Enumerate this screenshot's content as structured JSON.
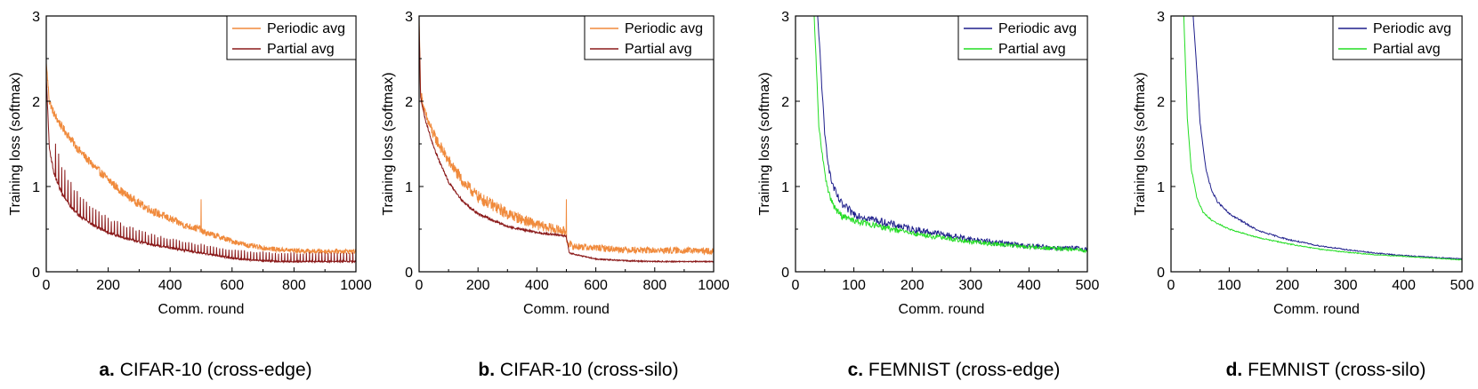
{
  "chart_data": [
    {
      "type": "line",
      "caption_letter": "a.",
      "caption_text": "CIFAR-10 (cross-edge)",
      "xlabel": "Comm. round",
      "ylabel": "Training loss (softmax)",
      "xlim": [
        0,
        1000
      ],
      "ylim": [
        0,
        3
      ],
      "xticks": [
        "0",
        "200",
        "400",
        "600",
        "800",
        "1000"
      ],
      "yticks": [
        "0",
        "1",
        "2",
        "3"
      ],
      "legend_position": "top-right",
      "series": [
        {
          "name": "Periodic avg",
          "color": "#f08a3c",
          "x": [
            0,
            10,
            25,
            50,
            75,
            100,
            150,
            200,
            250,
            300,
            350,
            400,
            450,
            499,
            500,
            501,
            550,
            600,
            650,
            700,
            750,
            800,
            850,
            900,
            950,
            1000
          ],
          "values": [
            2.45,
            2.0,
            1.85,
            1.7,
            1.58,
            1.45,
            1.25,
            1.08,
            0.92,
            0.8,
            0.7,
            0.62,
            0.54,
            0.5,
            0.85,
            0.47,
            0.42,
            0.36,
            0.31,
            0.28,
            0.26,
            0.25,
            0.24,
            0.24,
            0.24,
            0.24
          ],
          "noise": 0.05,
          "spike_every": 0,
          "spike_height": 0
        },
        {
          "name": "Partial avg",
          "color": "#8b1a1a",
          "x": [
            0,
            10,
            25,
            50,
            75,
            100,
            150,
            200,
            250,
            300,
            350,
            400,
            450,
            500,
            550,
            600,
            650,
            700,
            750,
            800,
            850,
            900,
            950,
            1000
          ],
          "values": [
            2.3,
            1.45,
            1.15,
            0.92,
            0.78,
            0.68,
            0.55,
            0.46,
            0.4,
            0.35,
            0.31,
            0.28,
            0.25,
            0.22,
            0.19,
            0.16,
            0.14,
            0.13,
            0.12,
            0.12,
            0.12,
            0.12,
            0.12,
            0.12
          ],
          "noise": 0.02,
          "spike_every": 10,
          "spike_height": 0.4
        }
      ]
    },
    {
      "type": "line",
      "caption_letter": "b.",
      "caption_text": "CIFAR-10 (cross-silo)",
      "xlabel": "Comm. round",
      "ylabel": "Training loss (softmax)",
      "xlim": [
        0,
        1000
      ],
      "ylim": [
        0,
        3
      ],
      "xticks": [
        "0",
        "200",
        "400",
        "600",
        "800",
        "1000"
      ],
      "yticks": [
        "0",
        "1",
        "2",
        "3"
      ],
      "legend_position": "top-right",
      "series": [
        {
          "name": "Periodic avg",
          "color": "#f08a3c",
          "x": [
            0,
            5,
            20,
            50,
            100,
            150,
            200,
            300,
            400,
            499,
            500,
            501,
            520,
            600,
            700,
            800,
            900,
            1000
          ],
          "values": [
            3.0,
            2.1,
            1.85,
            1.6,
            1.3,
            1.05,
            0.88,
            0.68,
            0.55,
            0.47,
            0.85,
            0.35,
            0.3,
            0.28,
            0.26,
            0.25,
            0.25,
            0.24
          ],
          "noise": 0.07,
          "spike_every": 0,
          "spike_height": 0
        },
        {
          "name": "Partial avg",
          "color": "#8b1a1a",
          "x": [
            0,
            5,
            20,
            50,
            100,
            150,
            200,
            300,
            400,
            499,
            510,
            600,
            700,
            800,
            900,
            1000
          ],
          "values": [
            2.9,
            2.05,
            1.8,
            1.45,
            1.05,
            0.82,
            0.68,
            0.53,
            0.46,
            0.42,
            0.22,
            0.15,
            0.13,
            0.12,
            0.12,
            0.12
          ],
          "noise": 0.015,
          "spike_every": 0,
          "spike_height": 0
        }
      ]
    },
    {
      "type": "line",
      "caption_letter": "c.",
      "caption_text": "FEMNIST (cross-edge)",
      "xlabel": "Comm. round",
      "ylabel": "Training loss (softmax)",
      "xlim": [
        0,
        500
      ],
      "ylim": [
        0,
        3
      ],
      "xticks": [
        "0",
        "100",
        "200",
        "300",
        "400",
        "500"
      ],
      "yticks": [
        "0",
        "1",
        "2",
        "3"
      ],
      "legend_position": "top-right",
      "series": [
        {
          "name": "Periodic avg",
          "color": "#1f1f8c",
          "x": [
            38,
            45,
            50,
            60,
            70,
            80,
            100,
            150,
            200,
            250,
            300,
            350,
            400,
            450,
            500
          ],
          "values": [
            3.0,
            2.2,
            1.6,
            1.1,
            0.9,
            0.78,
            0.68,
            0.58,
            0.5,
            0.44,
            0.38,
            0.34,
            0.3,
            0.28,
            0.27
          ],
          "noise": 0.05,
          "spike_every": 0,
          "spike_height": 0
        },
        {
          "name": "Partial avg",
          "color": "#22dd22",
          "x": [
            32,
            40,
            50,
            60,
            70,
            80,
            100,
            150,
            200,
            250,
            300,
            350,
            400,
            450,
            500
          ],
          "values": [
            3.0,
            1.7,
            1.15,
            0.85,
            0.72,
            0.65,
            0.6,
            0.52,
            0.45,
            0.4,
            0.35,
            0.32,
            0.29,
            0.27,
            0.25
          ],
          "noise": 0.04,
          "spike_every": 0,
          "spike_height": 0
        }
      ]
    },
    {
      "type": "line",
      "caption_letter": "d.",
      "caption_text": "FEMNIST (cross-silo)",
      "xlabel": "Comm. round",
      "ylabel": "Training loss (softmax)",
      "xlim": [
        0,
        500
      ],
      "ylim": [
        0,
        3
      ],
      "xticks": [
        "0",
        "100",
        "200",
        "300",
        "400",
        "500"
      ],
      "yticks": [
        "0",
        "1",
        "2",
        "3"
      ],
      "legend_position": "top-right",
      "series": [
        {
          "name": "Periodic avg",
          "color": "#1f1f8c",
          "x": [
            38,
            45,
            50,
            60,
            70,
            80,
            100,
            150,
            200,
            250,
            300,
            350,
            400,
            450,
            500
          ],
          "values": [
            3.0,
            2.3,
            1.75,
            1.2,
            0.95,
            0.82,
            0.68,
            0.48,
            0.38,
            0.31,
            0.26,
            0.22,
            0.19,
            0.17,
            0.15
          ],
          "noise": 0.012,
          "spike_every": 0,
          "spike_height": 0
        },
        {
          "name": "Partial avg",
          "color": "#22dd22",
          "x": [
            22,
            28,
            35,
            45,
            55,
            70,
            100,
            150,
            200,
            250,
            300,
            350,
            400,
            450,
            500
          ],
          "values": [
            3.0,
            1.8,
            1.2,
            0.85,
            0.7,
            0.6,
            0.5,
            0.4,
            0.33,
            0.27,
            0.23,
            0.2,
            0.18,
            0.16,
            0.14
          ],
          "noise": 0.01,
          "spike_every": 0,
          "spike_height": 0
        }
      ]
    }
  ]
}
